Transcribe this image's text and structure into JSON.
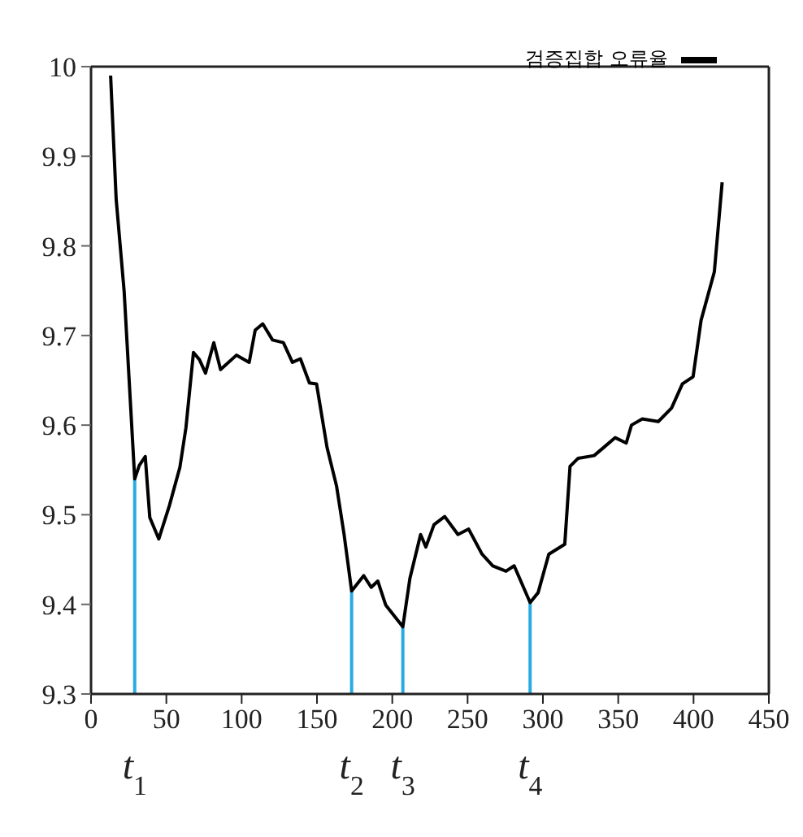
{
  "chart_data": {
    "type": "line",
    "x": [
      13,
      16.7,
      22,
      29,
      32,
      36,
      39,
      45,
      52,
      59,
      63,
      68,
      72,
      76,
      81.5,
      86,
      96.5,
      105,
      109,
      114,
      120.5,
      127.7,
      133.7,
      139,
      145,
      149.7,
      156.7,
      163,
      168,
      173,
      181,
      186,
      190.4,
      195.7,
      207,
      211.7,
      218.8,
      222.3,
      227.7,
      234.8,
      243.6,
      250.7,
      259.6,
      266.7,
      275.5,
      280.9,
      291.5,
      296.8,
      303.9,
      314.5,
      318,
      323.4,
      334,
      341,
      348,
      355.3,
      358.8,
      366,
      376.6,
      385.4,
      392.6,
      399.7,
      405,
      413.8,
      419
    ],
    "series": [
      {
        "name": "검증집합 오류율",
        "color": "#000000",
        "values": [
          9.99,
          9.852,
          9.749,
          9.54,
          9.555,
          9.565,
          9.497,
          9.473,
          9.51,
          9.553,
          9.597,
          9.681,
          9.673,
          9.658,
          9.692,
          9.662,
          9.678,
          9.67,
          9.706,
          9.713,
          9.695,
          9.692,
          9.67,
          9.674,
          9.647,
          9.646,
          9.575,
          9.532,
          9.478,
          9.415,
          9.432,
          9.419,
          9.426,
          9.399,
          9.375,
          9.429,
          9.478,
          9.464,
          9.489,
          9.498,
          9.478,
          9.484,
          9.456,
          9.443,
          9.437,
          9.443,
          9.402,
          9.413,
          9.456,
          9.467,
          9.554,
          9.563,
          9.566,
          9.576,
          9.586,
          9.58,
          9.6,
          9.607,
          9.604,
          9.619,
          9.646,
          9.654,
          9.717,
          9.771,
          9.871
        ]
      }
    ],
    "xlim": [
      0,
      450
    ],
    "xticks": [
      0,
      50,
      100,
      150,
      200,
      250,
      300,
      350,
      400,
      450
    ],
    "ylim": [
      9.3,
      10
    ],
    "yticks": [
      9.3,
      9.4,
      9.5,
      9.6,
      9.7,
      9.8,
      9.9,
      10
    ],
    "ref_lines": [
      {
        "axis": "x",
        "value": 29,
        "label": "t$_{1}$",
        "color": "#29abe2"
      },
      {
        "axis": "x",
        "value": 173,
        "label": "t$_{2}$",
        "color": "#29abe2"
      },
      {
        "axis": "x",
        "value": 207,
        "label": "t$_{3}$",
        "color": "#29abe2"
      },
      {
        "axis": "x",
        "value": 291.5,
        "label": "t$_{4}$",
        "color": "#29abe2"
      }
    ],
    "legend": "top right",
    "grid": false,
    "marker": "none",
    "line_style": "solid"
  }
}
